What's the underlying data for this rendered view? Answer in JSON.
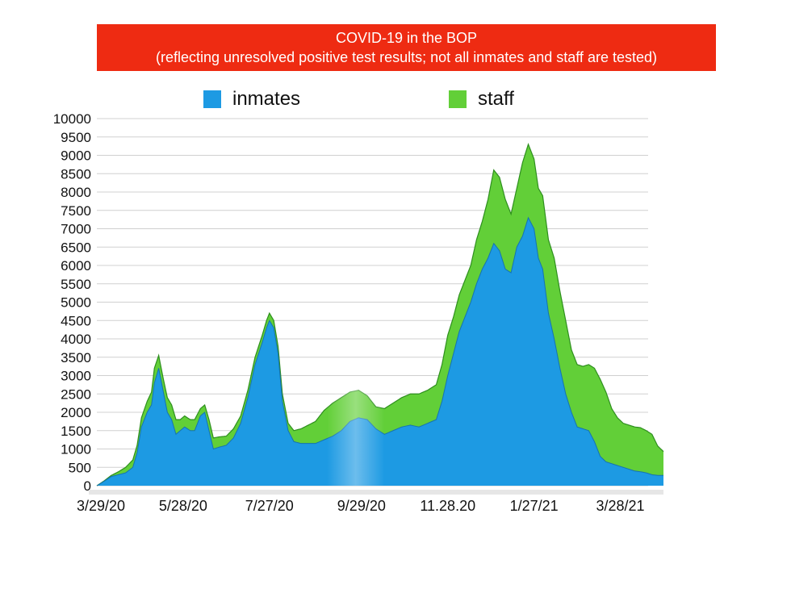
{
  "colors": {
    "banner": "#ee2b12",
    "inmates": "#1d9ae3",
    "staff": "#62cf38",
    "grid": "#d0d0d0"
  },
  "chart_data": {
    "type": "area",
    "title": "COVID-19 in the BOP",
    "subtitle": "(reflecting unresolved positive test results; not all inmates and staff are tested)",
    "stacked": true,
    "ylim": [
      0,
      10000
    ],
    "yticks": [
      "10000",
      "9500",
      "9000",
      "8500",
      "8000",
      "7500",
      "7000",
      "6500",
      "6000",
      "5500",
      "5000",
      "4500",
      "4000",
      "3500",
      "3000",
      "2500",
      "2000",
      "1500",
      "1000",
      "500",
      "0"
    ],
    "x_tick_labels": [
      "3/29/20",
      "5/28/20",
      "7/27/20",
      "9/29/20",
      "11.28.20",
      "1/27/21",
      "3/28/21"
    ],
    "x_tick_days": [
      0,
      60,
      120,
      184,
      244,
      304,
      364
    ],
    "x_range_days": [
      0,
      394
    ],
    "legend": [
      "inmates",
      "staff"
    ],
    "legend_position": "top",
    "series": [
      {
        "name": "inmates",
        "points": [
          [
            0,
            0
          ],
          [
            5,
            120
          ],
          [
            10,
            250
          ],
          [
            15,
            300
          ],
          [
            20,
            350
          ],
          [
            25,
            500
          ],
          [
            28,
            900
          ],
          [
            31,
            1600
          ],
          [
            35,
            2000
          ],
          [
            38,
            2200
          ],
          [
            40,
            2800
          ],
          [
            43,
            3200
          ],
          [
            46,
            2600
          ],
          [
            49,
            2000
          ],
          [
            52,
            1800
          ],
          [
            55,
            1400
          ],
          [
            58,
            1500
          ],
          [
            61,
            1600
          ],
          [
            65,
            1500
          ],
          [
            68,
            1500
          ],
          [
            72,
            1900
          ],
          [
            75,
            2000
          ],
          [
            78,
            1500
          ],
          [
            81,
            1000
          ],
          [
            85,
            1050
          ],
          [
            90,
            1100
          ],
          [
            95,
            1300
          ],
          [
            100,
            1700
          ],
          [
            105,
            2400
          ],
          [
            110,
            3300
          ],
          [
            115,
            3900
          ],
          [
            118,
            4300
          ],
          [
            120,
            4500
          ],
          [
            123,
            4300
          ],
          [
            126,
            3600
          ],
          [
            129,
            2300
          ],
          [
            133,
            1500
          ],
          [
            137,
            1200
          ],
          [
            142,
            1150
          ],
          [
            147,
            1150
          ],
          [
            152,
            1150
          ],
          [
            158,
            1250
          ],
          [
            164,
            1350
          ],
          [
            170,
            1500
          ],
          [
            176,
            1750
          ],
          [
            182,
            1850
          ],
          [
            188,
            1800
          ],
          [
            194,
            1550
          ],
          [
            200,
            1400
          ],
          [
            206,
            1500
          ],
          [
            212,
            1600
          ],
          [
            218,
            1650
          ],
          [
            224,
            1600
          ],
          [
            230,
            1700
          ],
          [
            236,
            1800
          ],
          [
            240,
            2300
          ],
          [
            244,
            3000
          ],
          [
            248,
            3600
          ],
          [
            252,
            4200
          ],
          [
            256,
            4600
          ],
          [
            260,
            5000
          ],
          [
            264,
            5500
          ],
          [
            268,
            5900
          ],
          [
            272,
            6200
          ],
          [
            276,
            6600
          ],
          [
            280,
            6400
          ],
          [
            284,
            5900
          ],
          [
            288,
            5800
          ],
          [
            292,
            6500
          ],
          [
            296,
            6800
          ],
          [
            300,
            7300
          ],
          [
            304,
            7000
          ],
          [
            307,
            6200
          ],
          [
            310,
            5900
          ],
          [
            314,
            4700
          ],
          [
            318,
            4000
          ],
          [
            322,
            3200
          ],
          [
            326,
            2500
          ],
          [
            330,
            2000
          ],
          [
            334,
            1600
          ],
          [
            338,
            1550
          ],
          [
            342,
            1500
          ],
          [
            346,
            1200
          ],
          [
            350,
            800
          ],
          [
            354,
            650
          ],
          [
            358,
            600
          ],
          [
            362,
            550
          ],
          [
            366,
            500
          ],
          [
            370,
            450
          ],
          [
            374,
            400
          ],
          [
            378,
            380
          ],
          [
            382,
            350
          ],
          [
            386,
            300
          ],
          [
            390,
            280
          ],
          [
            394,
            280
          ]
        ]
      },
      {
        "name": "staff",
        "points": [
          [
            0,
            0
          ],
          [
            5,
            10
          ],
          [
            10,
            30
          ],
          [
            15,
            80
          ],
          [
            20,
            150
          ],
          [
            25,
            200
          ],
          [
            28,
            200
          ],
          [
            31,
            250
          ],
          [
            35,
            300
          ],
          [
            38,
            350
          ],
          [
            40,
            400
          ],
          [
            43,
            350
          ],
          [
            46,
            350
          ],
          [
            49,
            400
          ],
          [
            52,
            400
          ],
          [
            55,
            400
          ],
          [
            58,
            300
          ],
          [
            61,
            300
          ],
          [
            65,
            300
          ],
          [
            68,
            300
          ],
          [
            72,
            200
          ],
          [
            75,
            200
          ],
          [
            78,
            300
          ],
          [
            81,
            300
          ],
          [
            85,
            280
          ],
          [
            90,
            250
          ],
          [
            95,
            250
          ],
          [
            100,
            200
          ],
          [
            105,
            200
          ],
          [
            110,
            200
          ],
          [
            115,
            200
          ],
          [
            118,
            200
          ],
          [
            120,
            200
          ],
          [
            123,
            200
          ],
          [
            126,
            200
          ],
          [
            129,
            200
          ],
          [
            133,
            200
          ],
          [
            137,
            300
          ],
          [
            142,
            400
          ],
          [
            147,
            500
          ],
          [
            152,
            600
          ],
          [
            158,
            800
          ],
          [
            164,
            900
          ],
          [
            170,
            900
          ],
          [
            176,
            800
          ],
          [
            182,
            750
          ],
          [
            188,
            650
          ],
          [
            194,
            600
          ],
          [
            200,
            700
          ],
          [
            206,
            750
          ],
          [
            212,
            800
          ],
          [
            218,
            850
          ],
          [
            224,
            900
          ],
          [
            230,
            900
          ],
          [
            236,
            950
          ],
          [
            240,
            1000
          ],
          [
            244,
            1100
          ],
          [
            248,
            1000
          ],
          [
            252,
            1000
          ],
          [
            256,
            1000
          ],
          [
            260,
            1000
          ],
          [
            264,
            1200
          ],
          [
            268,
            1300
          ],
          [
            272,
            1600
          ],
          [
            276,
            2000
          ],
          [
            280,
            2000
          ],
          [
            284,
            1900
          ],
          [
            288,
            1600
          ],
          [
            292,
            1600
          ],
          [
            296,
            2000
          ],
          [
            300,
            2000
          ],
          [
            304,
            1900
          ],
          [
            307,
            1900
          ],
          [
            310,
            2000
          ],
          [
            314,
            2000
          ],
          [
            318,
            2200
          ],
          [
            322,
            2100
          ],
          [
            326,
            2000
          ],
          [
            330,
            1700
          ],
          [
            334,
            1700
          ],
          [
            338,
            1700
          ],
          [
            342,
            1800
          ],
          [
            346,
            2000
          ],
          [
            350,
            2100
          ],
          [
            354,
            1900
          ],
          [
            358,
            1500
          ],
          [
            362,
            1300
          ],
          [
            366,
            1200
          ],
          [
            370,
            1200
          ],
          [
            374,
            1200
          ],
          [
            378,
            1200
          ],
          [
            382,
            1150
          ],
          [
            386,
            1100
          ],
          [
            390,
            800
          ],
          [
            394,
            650
          ]
        ]
      }
    ]
  }
}
